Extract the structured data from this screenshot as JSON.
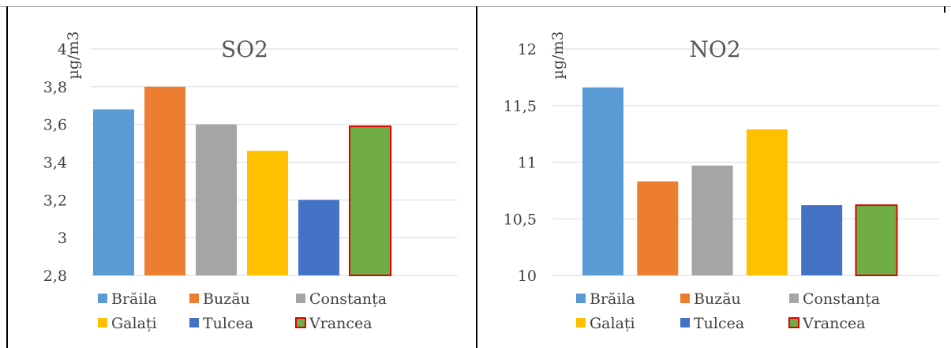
{
  "legend_labels": [
    "Brăila",
    "Buzău",
    "Constanța",
    "Galați",
    "Tulcea",
    "Vrancea"
  ],
  "colors": [
    "#5b9bd5",
    "#ed7d31",
    "#a5a5a5",
    "#ffc000",
    "#4472c4",
    "#70ad47"
  ],
  "highlight_border_color": "#e00000",
  "chart_data": [
    {
      "type": "bar",
      "title": "SO2",
      "ylabel": "µg/m3",
      "categories": [
        "Brăila",
        "Buzău",
        "Constanța",
        "Galați",
        "Tulcea",
        "Vrancea"
      ],
      "values": [
        3.68,
        3.8,
        3.6,
        3.46,
        3.2,
        3.59
      ],
      "ylim": [
        2.8,
        4
      ],
      "yticks": [
        "2,8",
        "3",
        "3,2",
        "3,4",
        "3,6",
        "3,8",
        "4"
      ],
      "grid": true,
      "legend_position": "bottom"
    },
    {
      "type": "bar",
      "title": "NO2",
      "ylabel": "µg/m3",
      "categories": [
        "Brăila",
        "Buzău",
        "Constanța",
        "Galați",
        "Tulcea",
        "Vrancea"
      ],
      "values": [
        11.66,
        10.83,
        10.97,
        11.29,
        10.62,
        10.62
      ],
      "ylim": [
        10,
        12
      ],
      "yticks": [
        "10",
        "10,5",
        "11",
        "11,5",
        "12"
      ],
      "grid": true,
      "legend_position": "bottom"
    }
  ]
}
